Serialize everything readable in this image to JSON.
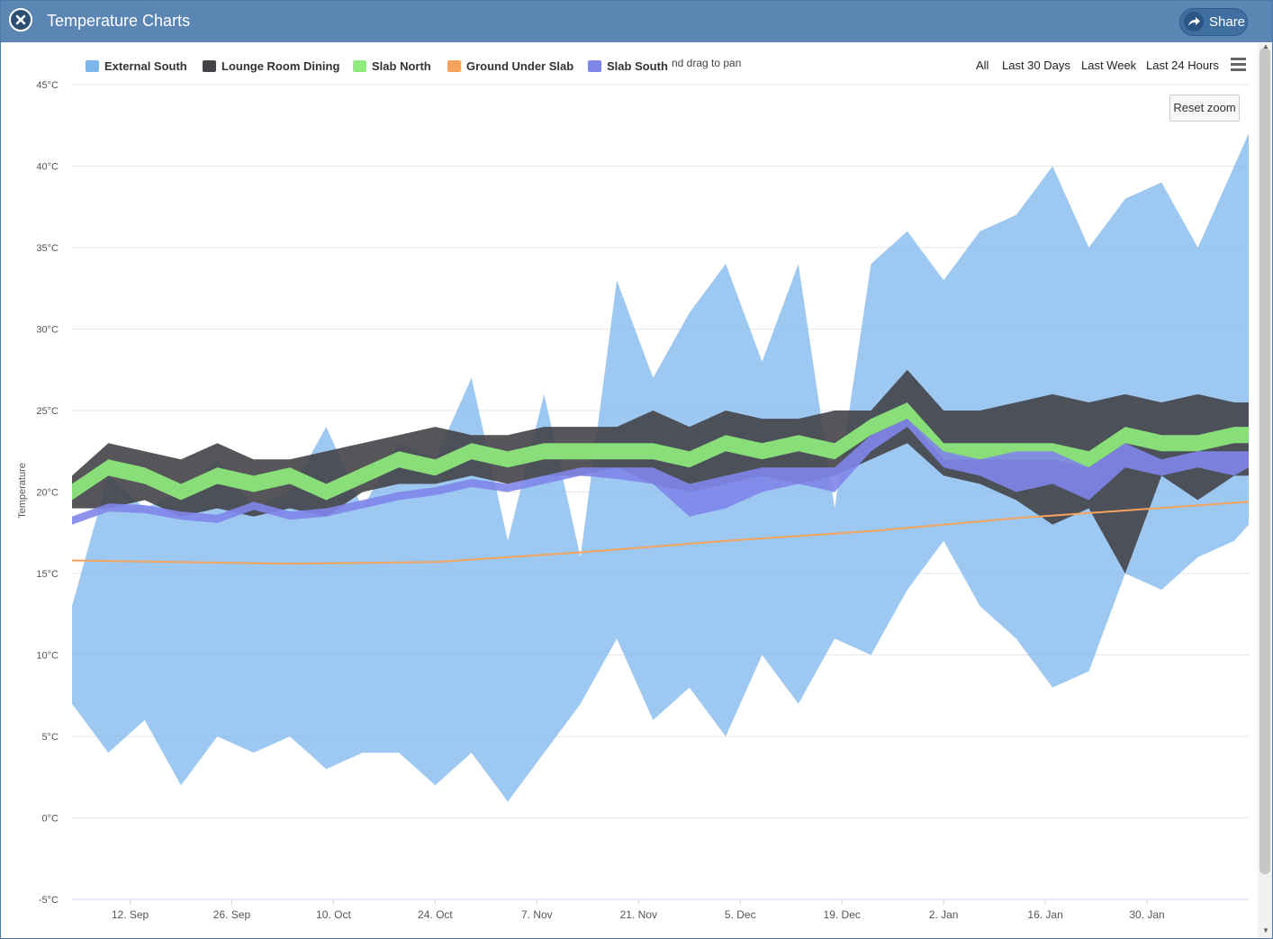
{
  "window": {
    "title": "Temperature Charts",
    "share_label": "Share"
  },
  "legend": [
    {
      "label": "External South",
      "color": "#7cb5ec"
    },
    {
      "label": "Lounge Room Dining",
      "color": "#434348"
    },
    {
      "label": "Slab North",
      "color": "#90ed7d"
    },
    {
      "label": "Ground Under Slab",
      "color": "#f7a35c"
    },
    {
      "label": "Slab South",
      "color": "#8085e9"
    }
  ],
  "hint": "nd drag to pan",
  "range_buttons": [
    "All",
    "Last 30 Days",
    "Last Week",
    "Last 24 Hours"
  ],
  "reset_zoom_label": "Reset zoom",
  "chart_data": {
    "type": "area",
    "ylabel": "Temperature",
    "ylim": [
      -5,
      45
    ],
    "y_ticks": [
      "-5°C",
      "0°C",
      "5°C",
      "10°C",
      "15°C",
      "20°C",
      "25°C",
      "30°C",
      "35°C",
      "40°C",
      "45°C"
    ],
    "y_tick_values": [
      -5,
      0,
      5,
      10,
      15,
      20,
      25,
      30,
      35,
      40,
      45
    ],
    "x_ticks": [
      "12. Sep",
      "26. Sep",
      "10. Oct",
      "24. Oct",
      "7. Nov",
      "21. Nov",
      "5. Dec",
      "19. Dec",
      "2. Jan",
      "16. Jan",
      "30. Jan"
    ],
    "x_tick_values": [
      "2015-09-12",
      "2015-09-26",
      "2015-10-10",
      "2015-10-24",
      "2015-11-07",
      "2015-11-21",
      "2015-12-05",
      "2015-12-19",
      "2016-01-02",
      "2016-01-16",
      "2016-01-30"
    ],
    "xlim": [
      "2015-09-04",
      "2016-02-13"
    ],
    "grid": true,
    "legend_position": "top",
    "series": [
      {
        "name": "External South",
        "kind": "arearange",
        "color": "#7cb5ec",
        "x": [
          "2015-09-04",
          "2015-09-09",
          "2015-09-14",
          "2015-09-19",
          "2015-09-24",
          "2015-09-29",
          "2015-10-04",
          "2015-10-09",
          "2015-10-14",
          "2015-10-19",
          "2015-10-24",
          "2015-10-29",
          "2015-11-03",
          "2015-11-08",
          "2015-11-13",
          "2015-11-18",
          "2015-11-23",
          "2015-11-28",
          "2015-12-03",
          "2015-12-08",
          "2015-12-13",
          "2015-12-18",
          "2015-12-23",
          "2015-12-28",
          "2016-01-02",
          "2016-01-07",
          "2016-01-12",
          "2016-01-17",
          "2016-01-22",
          "2016-01-27",
          "2016-02-01",
          "2016-02-06",
          "2016-02-11",
          "2016-02-13"
        ],
        "low": [
          7,
          4,
          6,
          2,
          5,
          4,
          5,
          3,
          4,
          4,
          2,
          4,
          1,
          4,
          7,
          11,
          6,
          8,
          5,
          10,
          7,
          11,
          10,
          14,
          17,
          13,
          11,
          8,
          9,
          15,
          14,
          16,
          17,
          18
        ],
        "high": [
          13,
          21,
          19,
          20,
          22,
          19,
          20,
          24,
          19,
          23,
          22,
          27,
          17,
          26,
          16,
          33,
          27,
          31,
          34,
          28,
          34,
          19,
          34,
          36,
          33,
          36,
          37,
          40,
          35,
          38,
          39,
          35,
          40,
          42
        ]
      },
      {
        "name": "Lounge Room Dining",
        "kind": "arearange",
        "color": "#434348",
        "x": [
          "2015-09-04",
          "2015-09-09",
          "2015-09-14",
          "2015-09-19",
          "2015-09-24",
          "2015-09-29",
          "2015-10-04",
          "2015-10-09",
          "2015-10-14",
          "2015-10-19",
          "2015-10-24",
          "2015-10-29",
          "2015-11-03",
          "2015-11-08",
          "2015-11-13",
          "2015-11-18",
          "2015-11-23",
          "2015-11-28",
          "2015-12-03",
          "2015-12-08",
          "2015-12-13",
          "2015-12-18",
          "2015-12-23",
          "2015-12-28",
          "2016-01-02",
          "2016-01-07",
          "2016-01-12",
          "2016-01-17",
          "2016-01-22",
          "2016-01-27",
          "2016-02-01",
          "2016-02-06",
          "2016-02-11",
          "2016-02-13"
        ],
        "low": [
          19,
          19,
          19.5,
          18.5,
          19,
          18.5,
          19,
          18.5,
          20,
          20.5,
          20.5,
          21,
          20.5,
          21,
          21,
          21.5,
          20.5,
          20,
          20.5,
          21,
          20.5,
          21,
          22,
          23,
          21,
          20.5,
          19.5,
          18,
          19,
          15,
          21,
          19.5,
          21,
          21
        ],
        "high": [
          21,
          23,
          22.5,
          22,
          23,
          22,
          22,
          22.5,
          23,
          23.5,
          24,
          23.5,
          23.5,
          24,
          24,
          24,
          25,
          24,
          25,
          24.5,
          24.5,
          25,
          25,
          27.5,
          25,
          25,
          25.5,
          26,
          25.5,
          26,
          25.5,
          26,
          25.5,
          25.5
        ]
      },
      {
        "name": "Slab North",
        "kind": "band",
        "color": "#90ed7d",
        "x": [
          "2015-09-04",
          "2015-09-09",
          "2015-09-14",
          "2015-09-19",
          "2015-09-24",
          "2015-09-29",
          "2015-10-04",
          "2015-10-09",
          "2015-10-14",
          "2015-10-19",
          "2015-10-24",
          "2015-10-29",
          "2015-11-03",
          "2015-11-08",
          "2015-11-13",
          "2015-11-18",
          "2015-11-23",
          "2015-11-28",
          "2015-12-03",
          "2015-12-08",
          "2015-12-13",
          "2015-12-18",
          "2015-12-23",
          "2015-12-28",
          "2016-01-02",
          "2016-01-07",
          "2016-01-12",
          "2016-01-17",
          "2016-01-22",
          "2016-01-27",
          "2016-02-01",
          "2016-02-06",
          "2016-02-11",
          "2016-02-13"
        ],
        "low": [
          19.5,
          21,
          20.5,
          19.5,
          20.5,
          20,
          20.5,
          19.5,
          20.5,
          21.5,
          21,
          22,
          21.5,
          22,
          22,
          22,
          22,
          21.5,
          22.5,
          22,
          22.5,
          22,
          23.5,
          24.5,
          22,
          22,
          22,
          22,
          21.5,
          23,
          22.5,
          22.5,
          23,
          23
        ],
        "high": [
          20.5,
          22,
          21.5,
          20.5,
          21.5,
          21,
          21.5,
          20.5,
          21.5,
          22.5,
          22,
          23,
          22.5,
          23,
          23,
          23,
          23,
          22.5,
          23.5,
          23,
          23.5,
          23,
          24.5,
          25.5,
          23,
          23,
          23,
          23,
          22.5,
          24,
          23.5,
          23.5,
          24,
          24
        ]
      },
      {
        "name": "Ground Under Slab",
        "kind": "line",
        "color": "#f7a35c",
        "x": [
          "2015-09-04",
          "2015-10-04",
          "2015-10-24",
          "2015-11-13",
          "2015-12-03",
          "2015-12-23",
          "2016-01-12",
          "2016-02-13"
        ],
        "values": [
          15.8,
          15.6,
          15.7,
          16.3,
          17.0,
          17.6,
          18.4,
          19.4
        ]
      },
      {
        "name": "Slab South",
        "kind": "band",
        "color": "#8085e9",
        "x": [
          "2015-09-04",
          "2015-09-09",
          "2015-09-14",
          "2015-09-19",
          "2015-09-24",
          "2015-09-29",
          "2015-10-04",
          "2015-10-09",
          "2015-10-14",
          "2015-10-19",
          "2015-10-24",
          "2015-10-29",
          "2015-11-03",
          "2015-11-08",
          "2015-11-13",
          "2015-11-18",
          "2015-11-23",
          "2015-11-28",
          "2015-12-03",
          "2015-12-08",
          "2015-12-13",
          "2015-12-18",
          "2015-12-23",
          "2015-12-28",
          "2016-01-02",
          "2016-01-07",
          "2016-01-12",
          "2016-01-17",
          "2016-01-22",
          "2016-01-27",
          "2016-02-01",
          "2016-02-06",
          "2016-02-11",
          "2016-02-13"
        ],
        "low": [
          18,
          18.8,
          18.7,
          18.3,
          18.1,
          18.9,
          18.3,
          18.5,
          19.0,
          19.5,
          19.8,
          20.3,
          20.0,
          20.5,
          21.0,
          20.8,
          20.5,
          18.5,
          19.0,
          20.0,
          20.5,
          20.0,
          22.5,
          24.0,
          21.5,
          21.0,
          20.0,
          20.5,
          19.5,
          21.5,
          21.0,
          21.5,
          21.0,
          21.5
        ],
        "high": [
          18.5,
          19.3,
          19.2,
          18.8,
          18.6,
          19.4,
          18.8,
          19.0,
          19.5,
          20.0,
          20.3,
          20.8,
          20.5,
          21.0,
          21.5,
          21.5,
          21.5,
          20.5,
          21.0,
          21.5,
          21.5,
          21.5,
          23.5,
          24.5,
          22.5,
          22.0,
          22.5,
          22.5,
          21.5,
          23.0,
          22.0,
          22.5,
          22.5,
          22.5
        ]
      }
    ]
  }
}
